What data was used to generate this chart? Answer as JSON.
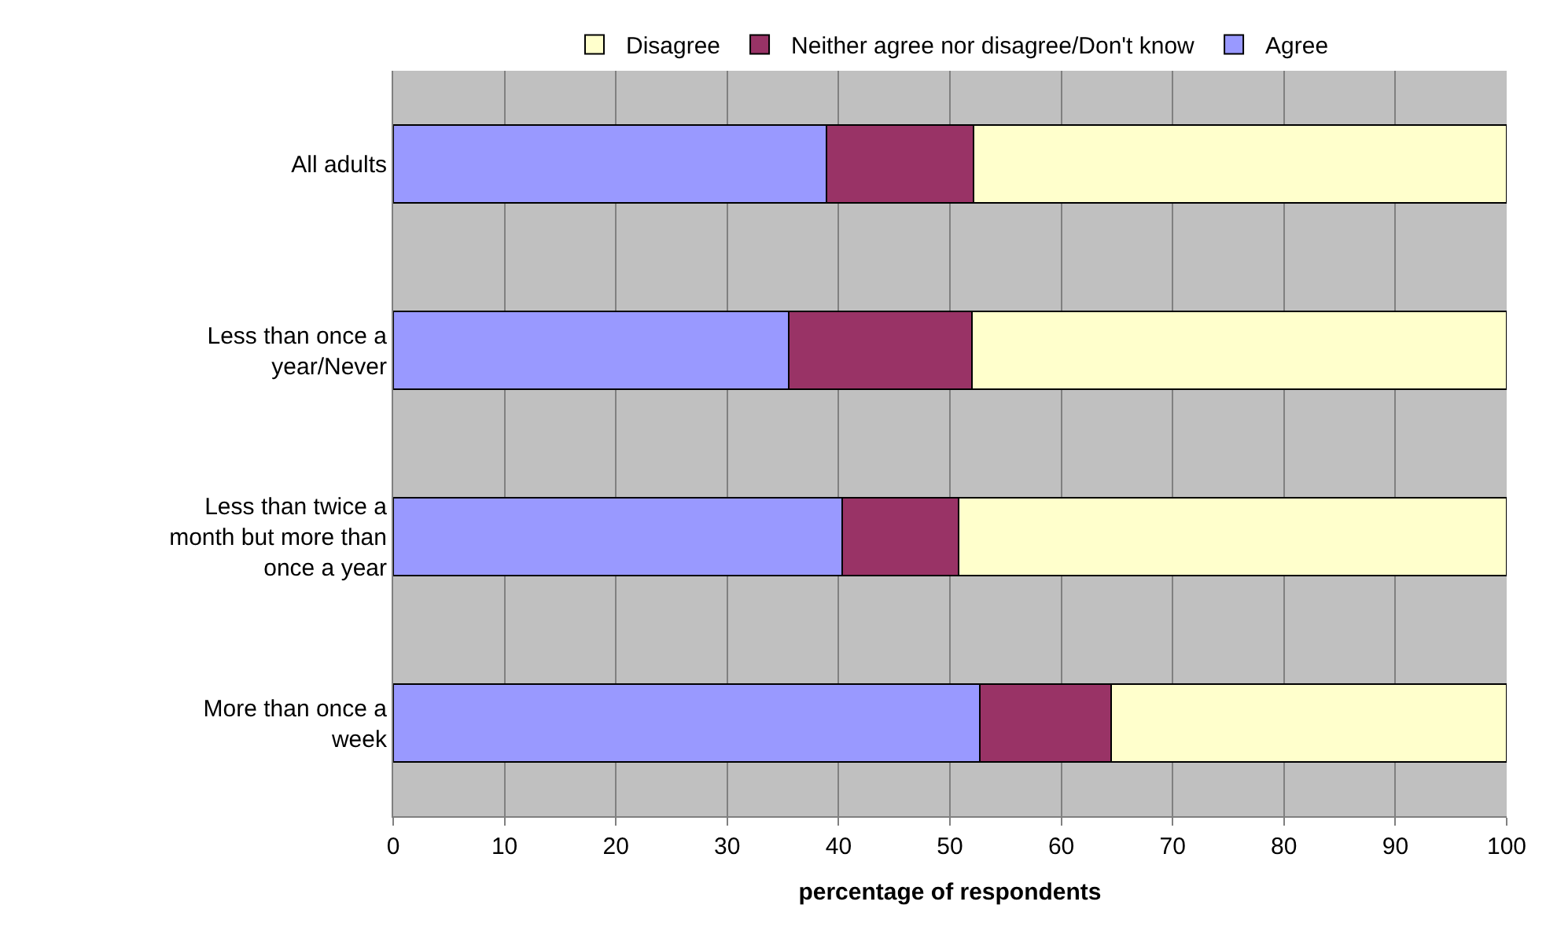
{
  "chart_data": {
    "type": "bar",
    "orientation": "horizontal",
    "stacked": true,
    "xlabel": "percentage of respondents",
    "categories": [
      "All adults",
      "Less than once a year/Never",
      "Less than twice a month but more than once a year",
      "More than once a week"
    ],
    "series": [
      {
        "name": "Agree",
        "color": "#9999ff",
        "values": [
          38.9,
          35.5,
          40.3,
          52.7
        ]
      },
      {
        "name": "Neither agree nor disagree/Don't know",
        "color": "#993366",
        "values": [
          13.2,
          16.5,
          10.5,
          11.8
        ]
      },
      {
        "name": "Disagree",
        "color": "#ffffcc",
        "values": [
          47.9,
          48.0,
          49.2,
          35.5
        ]
      }
    ],
    "xlim": [
      0,
      100
    ],
    "xticks": [
      0,
      10,
      20,
      30,
      40,
      50,
      60,
      70,
      80,
      90,
      100
    ],
    "grid": "x",
    "legend": "top"
  }
}
